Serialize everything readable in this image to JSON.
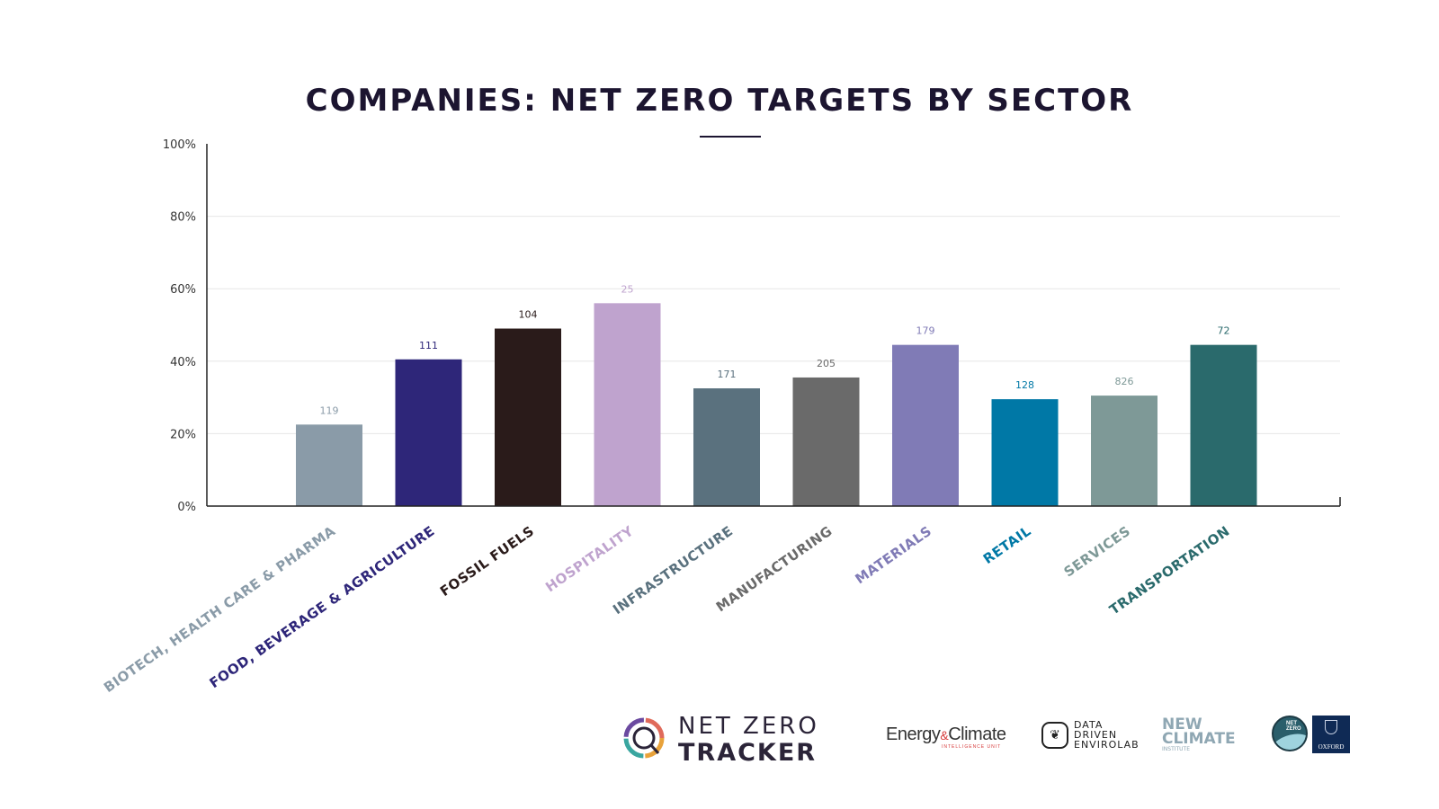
{
  "title": "COMPANIES: NET ZERO TARGETS BY SECTOR",
  "chart_data": {
    "type": "bar",
    "title": "COMPANIES: NET ZERO TARGETS BY SECTOR",
    "xlabel": "",
    "ylabel": "",
    "ylim": [
      0,
      100
    ],
    "y_ticks": [
      "0%",
      "20%",
      "40%",
      "60%",
      "80%",
      "100%"
    ],
    "grid": true,
    "categories": [
      "BIOTECH, HEALTH CARE & PHARMA",
      "FOOD, BEVERAGE & AGRICULTURE",
      "FOSSIL FUELS",
      "HOSPITALITY",
      "INFRASTRUCTURE",
      "MANUFACTURING",
      "MATERIALS",
      "RETAIL",
      "SERVICES",
      "TRANSPORTATION"
    ],
    "values": [
      22.5,
      40.5,
      49,
      56,
      32.5,
      35.5,
      44.5,
      29.5,
      30.5,
      44.5
    ],
    "data_labels": [
      "119",
      "111",
      "104",
      "25",
      "171",
      "205",
      "179",
      "128",
      "826",
      "72"
    ],
    "colors": [
      "#8a9ba8",
      "#2e2679",
      "#2a1b1a",
      "#bfa3ce",
      "#5a717e",
      "#6a6a6a",
      "#807bb6",
      "#0078a6",
      "#7e9997",
      "#2a6a6c"
    ]
  },
  "logos": {
    "net_zero_tracker": [
      "NET ZERO",
      "TRACKER"
    ],
    "energy_climate": {
      "main": "Energy",
      "amp": "&",
      "rest": "Climate",
      "sub": "INTELLIGENCE UNIT"
    },
    "data_driven": [
      "DATA",
      "DRIVEN",
      "ENVIROLAB"
    ],
    "new_climate": [
      "NEW",
      "CLIMATE",
      "INSTITUTE"
    ],
    "net_zero_badge": [
      "NET",
      "ZERO"
    ],
    "oxford": "OXFORD"
  }
}
